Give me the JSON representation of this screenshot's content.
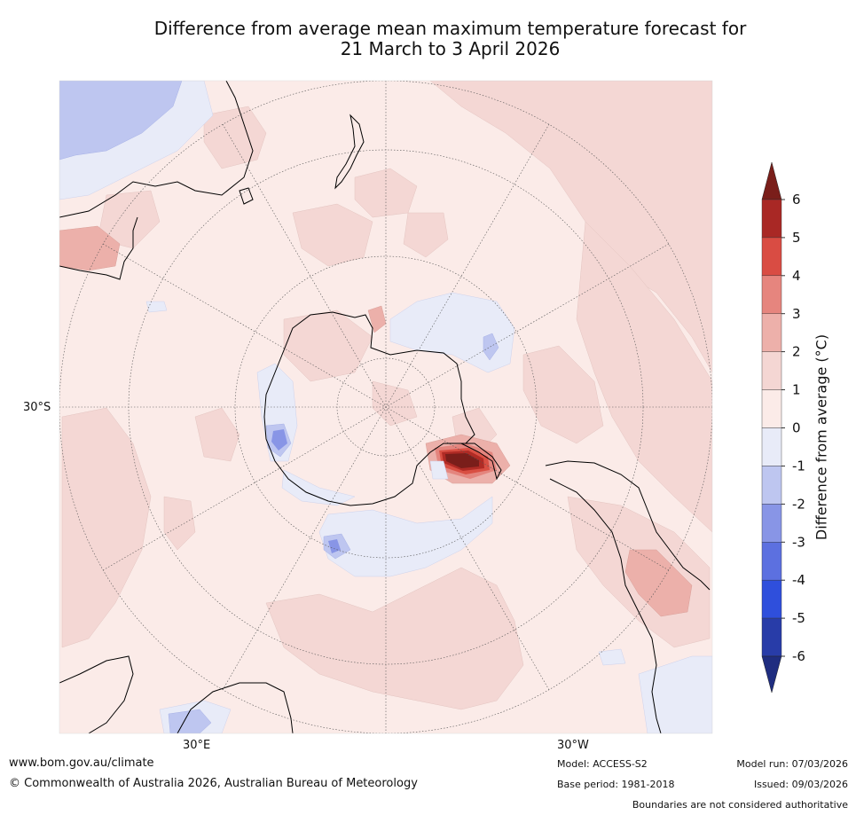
{
  "title": {
    "line1": "Difference from average mean maximum temperature forecast for",
    "line2": "21 March to 3 April 2026"
  },
  "map": {
    "projection": "south-polar-stereographic",
    "latitude_label": "30°S",
    "longitude_labels": {
      "east": "30°E",
      "west": "30°W"
    },
    "colors": {
      "ocean_base": "#fbebe8",
      "anom_0_1": "#fbebe8",
      "anom_1_2": "#f4d7d4",
      "anom_2_3": "#ecb0aa",
      "anom_3_4": "#e4857e",
      "anom_4_5": "#d94f43",
      "anom_5_6": "#b02b25",
      "anom_6_plus": "#7a1e1a",
      "anom_m1_0": "#e8ebf8",
      "anom_m2_m1": "#bec6f0",
      "anom_m3_m2": "#8895e6"
    }
  },
  "colorbar": {
    "label": "Difference from average (°C)",
    "ticks": [
      "6",
      "5",
      "4",
      "3",
      "2",
      "1",
      "0",
      "-1",
      "-2",
      "-3",
      "-4",
      "-5",
      "-6"
    ],
    "bins": [
      {
        "range": "5 to 6",
        "color": "#a92825"
      },
      {
        "range": "4 to 5",
        "color": "#d94c43"
      },
      {
        "range": "3 to 4",
        "color": "#e6857e"
      },
      {
        "range": "2 to 3",
        "color": "#edb0aa"
      },
      {
        "range": "1 to 2",
        "color": "#f4d6d3"
      },
      {
        "range": "0 to 1",
        "color": "#fbebe8"
      },
      {
        "range": "-1 to 0",
        "color": "#e8ebf8"
      },
      {
        "range": "-2 to -1",
        "color": "#bec6f0"
      },
      {
        "range": "-3 to -2",
        "color": "#8895e6"
      },
      {
        "range": "-4 to -3",
        "color": "#5c70e0"
      },
      {
        "range": "-5 to -4",
        "color": "#2f4fdc"
      },
      {
        "range": "-6 to -5",
        "color": "#283ca8"
      }
    ],
    "extend_high_color": "#7a1e1a",
    "extend_low_color": "#1f2d80"
  },
  "footer": {
    "website": "www.bom.gov.au/climate",
    "copyright": "© Commonwealth of Australia 2026, Australian Bureau of Meteorology",
    "model": "Model: ACCESS-S2",
    "base_period": "Base period: 1981-2018",
    "model_run": "Model run: 07/03/2026",
    "issued": "Issued: 09/03/2026",
    "disclaimer": "Boundaries are not considered authoritative"
  }
}
